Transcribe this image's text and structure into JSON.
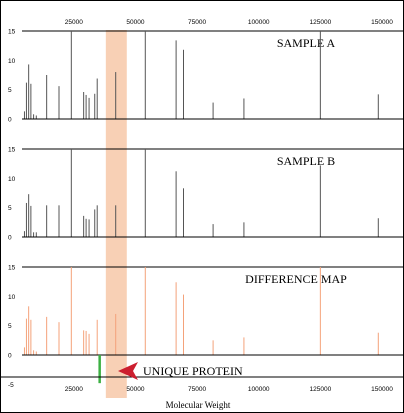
{
  "chart_data": {
    "type": "bar",
    "xlabel": "Molecular Weight",
    "x_ticks": [
      25000,
      50000,
      75000,
      100000,
      125000,
      150000
    ],
    "x_tick_labels": [
      "25000",
      "50000",
      "75000",
      "100000",
      "125000",
      "150000"
    ],
    "xlim": [
      4000,
      150000
    ],
    "highlight_band": [
      38000,
      46500
    ],
    "colors": {
      "frame": "#000000",
      "sample_bars": "#555555",
      "diff_bars": "#f4a27a",
      "highlight": "#f7c8a8",
      "unique_bar": "#3cb043",
      "arrow": "#cc1f2f"
    },
    "panels": [
      {
        "title": "SAMPLE A",
        "ylim": [
          0,
          15
        ],
        "y_ticks": [
          0,
          5,
          10,
          15
        ],
        "y_tick_labels": [
          "0",
          "5",
          "10",
          "15"
        ],
        "bars": [
          {
            "x": 5000,
            "y": 1.3
          },
          {
            "x": 5800,
            "y": 6.2
          },
          {
            "x": 6700,
            "y": 9.3
          },
          {
            "x": 7600,
            "y": 6.0
          },
          {
            "x": 8700,
            "y": 0.8
          },
          {
            "x": 9800,
            "y": 0.6
          },
          {
            "x": 14000,
            "y": 7.5
          },
          {
            "x": 19000,
            "y": 5.6
          },
          {
            "x": 24000,
            "y": 15
          },
          {
            "x": 29000,
            "y": 4.6
          },
          {
            "x": 30000,
            "y": 4.1
          },
          {
            "x": 31200,
            "y": 3.6
          },
          {
            "x": 33500,
            "y": 4.3
          },
          {
            "x": 34500,
            "y": 6.9
          },
          {
            "x": 42000,
            "y": 8.0
          },
          {
            "x": 54000,
            "y": 15
          },
          {
            "x": 66500,
            "y": 13.4
          },
          {
            "x": 69500,
            "y": 11.8
          },
          {
            "x": 81500,
            "y": 2.8
          },
          {
            "x": 94000,
            "y": 3.5
          },
          {
            "x": 125000,
            "y": 15
          },
          {
            "x": 148500,
            "y": 4.2
          }
        ]
      },
      {
        "title": "SAMPLE B",
        "ylim": [
          0,
          15
        ],
        "y_ticks": [
          0,
          5,
          10,
          15
        ],
        "y_tick_labels": [
          "0",
          "5",
          "10",
          "15"
        ],
        "bars": [
          {
            "x": 5000,
            "y": 1.0
          },
          {
            "x": 5800,
            "y": 5.8
          },
          {
            "x": 6700,
            "y": 7.3
          },
          {
            "x": 7600,
            "y": 5.3
          },
          {
            "x": 8700,
            "y": 0.8
          },
          {
            "x": 9800,
            "y": 0.8
          },
          {
            "x": 14000,
            "y": 5.4
          },
          {
            "x": 19000,
            "y": 5.4
          },
          {
            "x": 24000,
            "y": 15
          },
          {
            "x": 29000,
            "y": 3.6
          },
          {
            "x": 30000,
            "y": 3.1
          },
          {
            "x": 31200,
            "y": 3.0
          },
          {
            "x": 33500,
            "y": 4.7
          },
          {
            "x": 34500,
            "y": 5.4
          },
          {
            "x": 42000,
            "y": 5.4
          },
          {
            "x": 54000,
            "y": 15
          },
          {
            "x": 66500,
            "y": 11.2
          },
          {
            "x": 69500,
            "y": 8.3
          },
          {
            "x": 81500,
            "y": 2.2
          },
          {
            "x": 94000,
            "y": 2.5
          },
          {
            "x": 125000,
            "y": 12.2
          },
          {
            "x": 148500,
            "y": 3.2
          }
        ]
      },
      {
        "title": "DIFFERENCE MAP",
        "ylim": [
          -5,
          15
        ],
        "y_ticks": [
          -5,
          0,
          5,
          10,
          15
        ],
        "y_tick_labels": [
          "-5",
          "0",
          "5",
          "10",
          "15"
        ],
        "bars": [
          {
            "x": 5000,
            "y": 1.3
          },
          {
            "x": 5800,
            "y": 6.2
          },
          {
            "x": 6700,
            "y": 8.3
          },
          {
            "x": 7600,
            "y": 6.0
          },
          {
            "x": 8700,
            "y": 0.8
          },
          {
            "x": 9800,
            "y": 0.6
          },
          {
            "x": 14000,
            "y": 6.5
          },
          {
            "x": 19000,
            "y": 5.6
          },
          {
            "x": 24000,
            "y": 15
          },
          {
            "x": 29000,
            "y": 4.2
          },
          {
            "x": 30000,
            "y": 4.1
          },
          {
            "x": 31200,
            "y": 3.6
          },
          {
            "x": 34500,
            "y": 6.0
          },
          {
            "x": 42000,
            "y": 7.0
          },
          {
            "x": 54000,
            "y": 15
          },
          {
            "x": 66500,
            "y": 12.4
          },
          {
            "x": 69500,
            "y": 10.3
          },
          {
            "x": 81500,
            "y": 2.5
          },
          {
            "x": 94000,
            "y": 3.0
          },
          {
            "x": 125000,
            "y": 15
          },
          {
            "x": 148500,
            "y": 3.8
          }
        ],
        "unique_protein_bar": {
          "x": 35500,
          "y": -4.8
        }
      }
    ],
    "annotation": "UNIQUE PROTEIN"
  }
}
